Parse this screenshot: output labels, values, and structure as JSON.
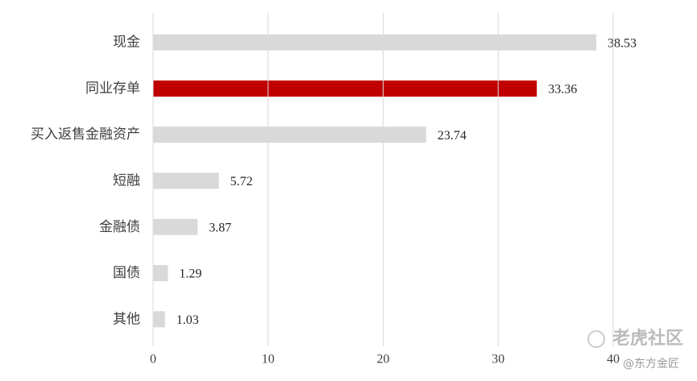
{
  "chart_data": {
    "type": "hbar",
    "categories": [
      "现金",
      "同业存单",
      "买入返售金融资产",
      "短融",
      "金融债",
      "国债",
      "其他"
    ],
    "values": [
      38.53,
      33.36,
      23.74,
      5.72,
      3.87,
      1.29,
      1.03
    ],
    "colors": [
      "#d9d9d9",
      "#c00000",
      "#d9d9d9",
      "#d9d9d9",
      "#d9d9d9",
      "#d9d9d9",
      "#d9d9d9"
    ],
    "xlim": [
      0,
      40
    ],
    "xticks": [
      0,
      10,
      20,
      30,
      40
    ],
    "grid": true
  },
  "watermark": {
    "brand": "老虎社区",
    "author": "@东方金匠"
  }
}
